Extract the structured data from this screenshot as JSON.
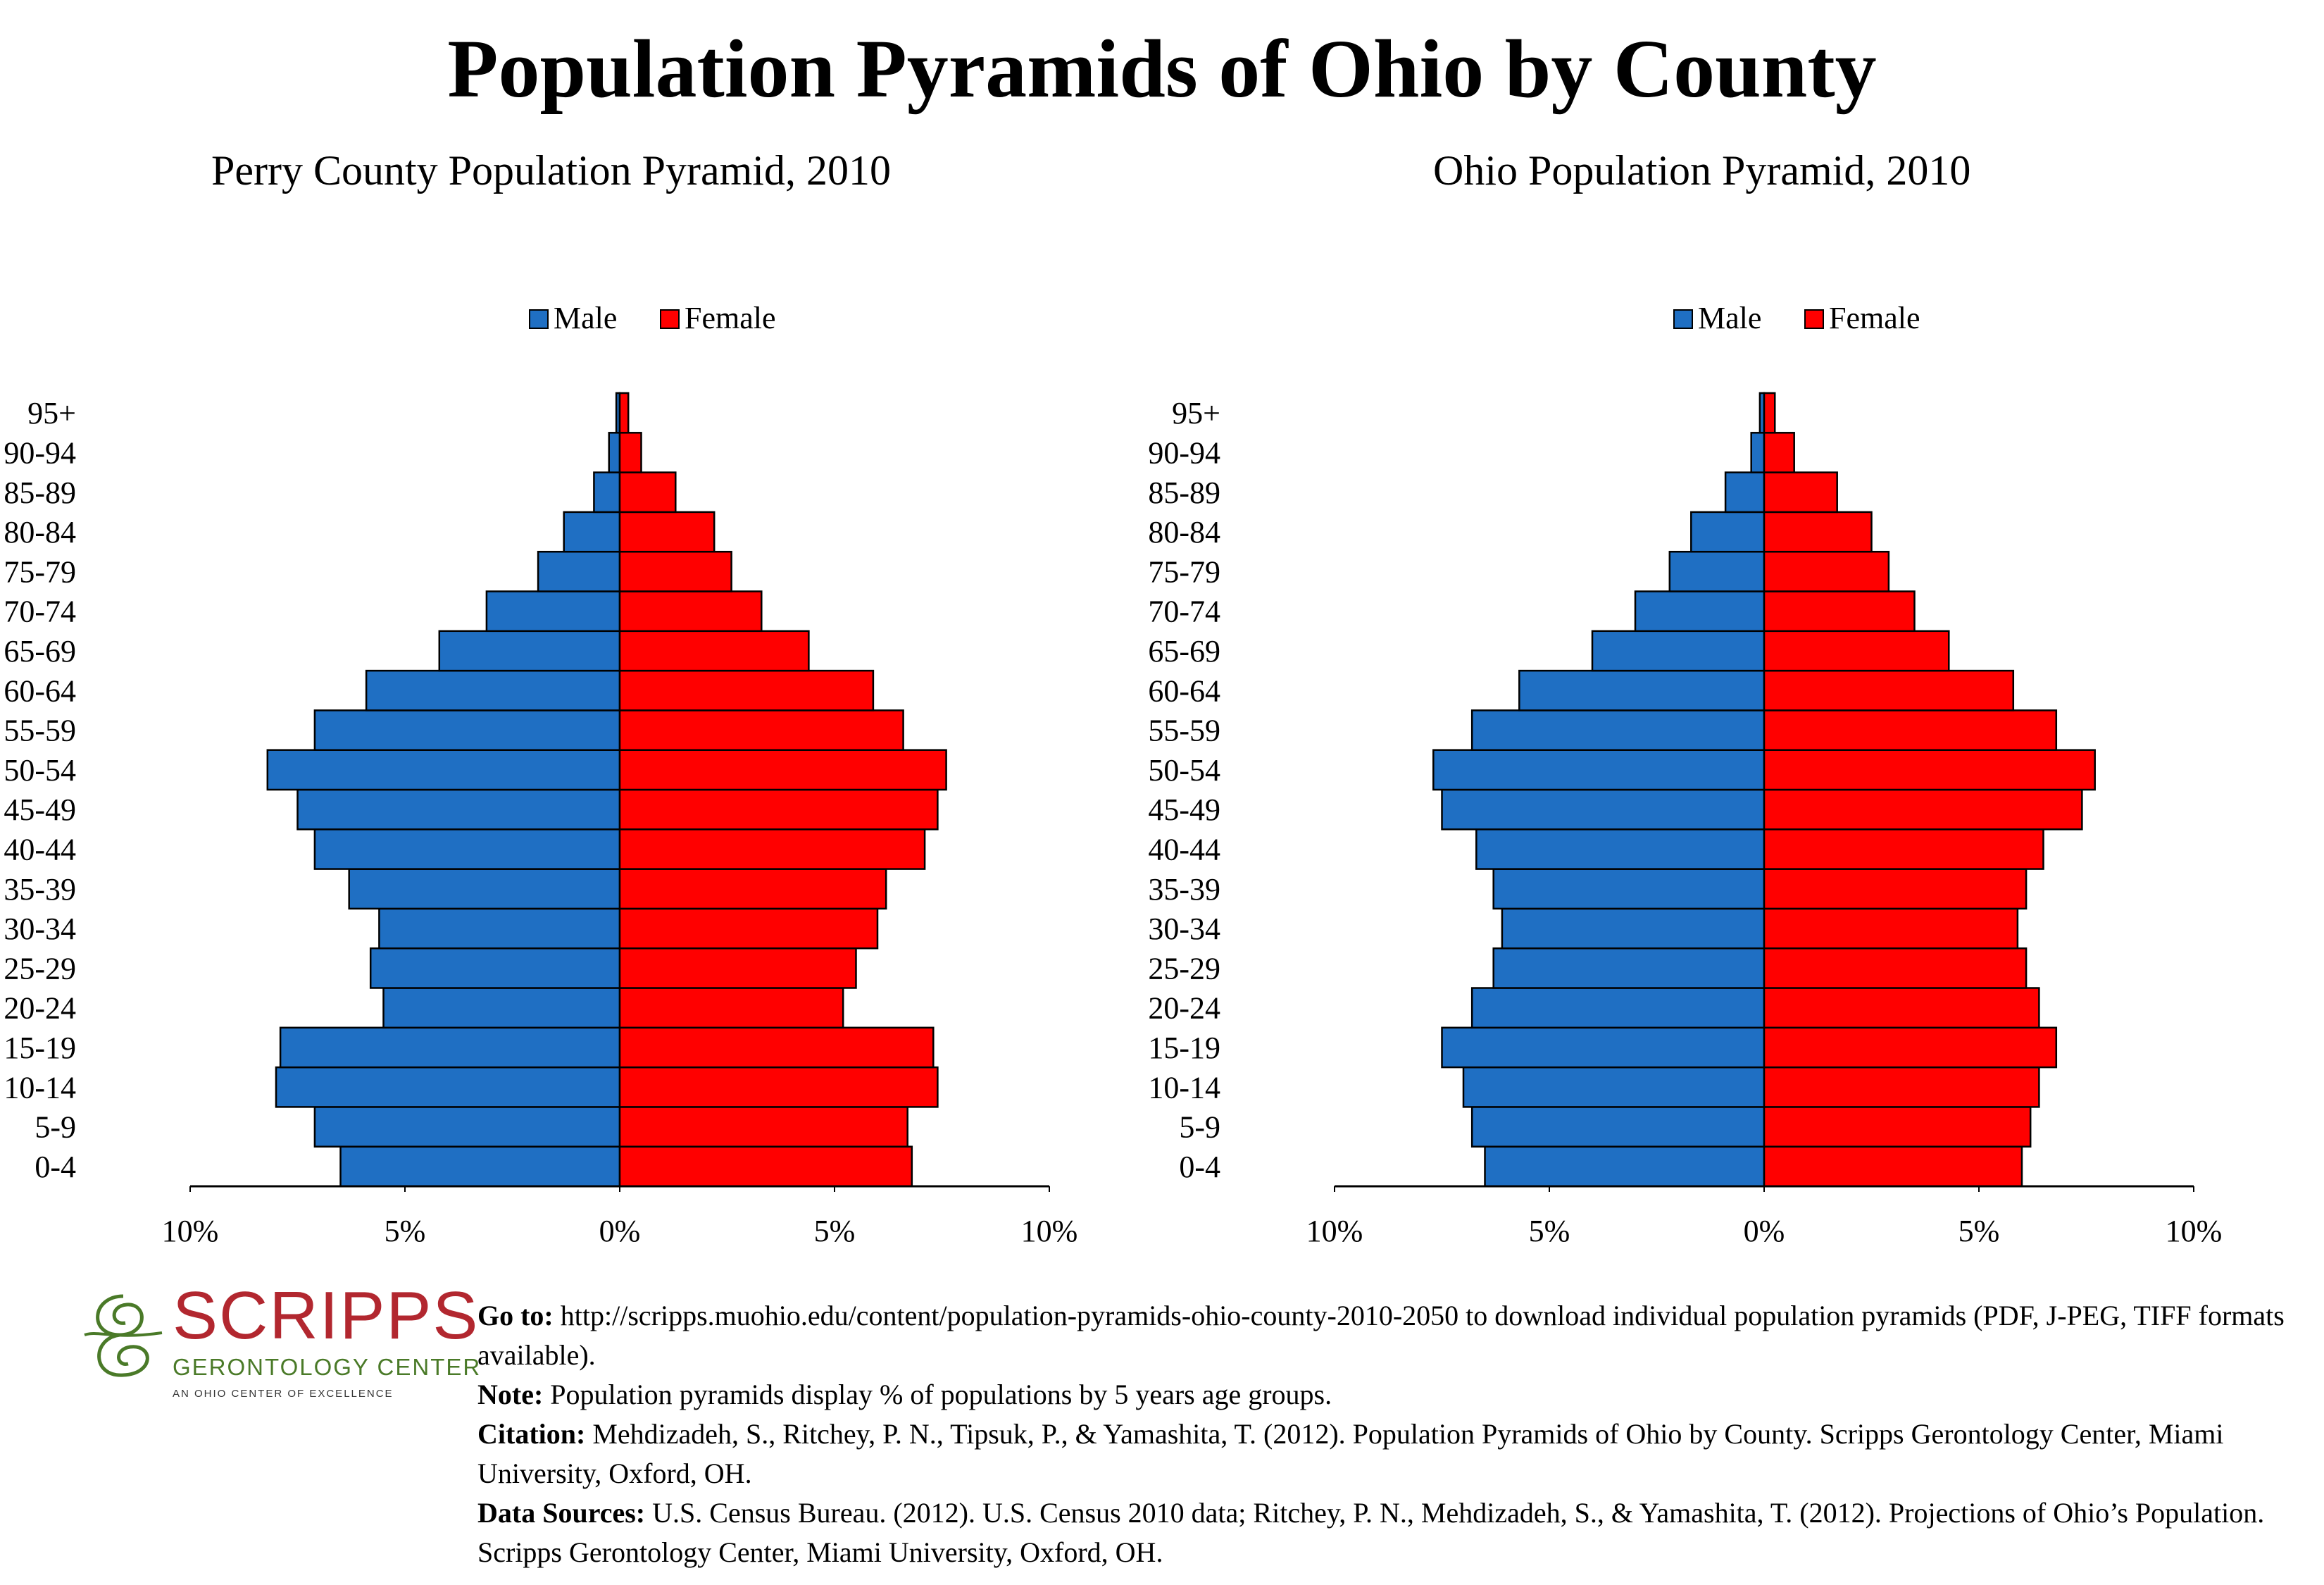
{
  "title": "Population Pyramids of Ohio by County",
  "legend": {
    "male": "Male",
    "female": "Female"
  },
  "colors": {
    "male": "#1f6fc3",
    "female": "#ff0000",
    "logo_red": "#b2272f",
    "logo_green": "#4a7a28"
  },
  "chart_data": [
    {
      "type": "bar",
      "orientation": "horizontal-population-pyramid",
      "title": "Perry County Population Pyramid, 2010",
      "categories": [
        "0-4",
        "5-9",
        "10-14",
        "15-19",
        "20-24",
        "25-29",
        "30-34",
        "35-39",
        "40-44",
        "45-49",
        "50-54",
        "55-59",
        "60-64",
        "65-69",
        "70-74",
        "75-79",
        "80-84",
        "85-89",
        "90-94",
        "95+"
      ],
      "series": [
        {
          "name": "Male",
          "values": [
            6.5,
            7.1,
            8.0,
            7.9,
            5.5,
            5.8,
            5.6,
            6.3,
            7.1,
            7.5,
            8.2,
            7.1,
            5.9,
            4.2,
            3.1,
            1.9,
            1.3,
            0.6,
            0.25,
            0.08
          ]
        },
        {
          "name": "Female",
          "values": [
            6.8,
            6.7,
            7.4,
            7.3,
            5.2,
            5.5,
            6.0,
            6.2,
            7.1,
            7.4,
            7.6,
            6.6,
            5.9,
            4.4,
            3.3,
            2.6,
            2.2,
            1.3,
            0.5,
            0.2
          ]
        }
      ],
      "xlim": [
        -10,
        10
      ],
      "xticks": [
        "10%",
        "5%",
        "0%",
        "5%",
        "10%"
      ],
      "legend_position": "top"
    },
    {
      "type": "bar",
      "orientation": "horizontal-population-pyramid",
      "title": "Ohio Population Pyramid, 2010",
      "categories": [
        "0-4",
        "5-9",
        "10-14",
        "15-19",
        "20-24",
        "25-29",
        "30-34",
        "35-39",
        "40-44",
        "45-49",
        "50-54",
        "55-59",
        "60-64",
        "65-69",
        "70-74",
        "75-79",
        "80-84",
        "85-89",
        "90-94",
        "95+"
      ],
      "series": [
        {
          "name": "Male",
          "values": [
            6.5,
            6.8,
            7.0,
            7.5,
            6.8,
            6.3,
            6.1,
            6.3,
            6.7,
            7.5,
            7.7,
            6.8,
            5.7,
            4.0,
            3.0,
            2.2,
            1.7,
            0.9,
            0.3,
            0.1
          ]
        },
        {
          "name": "Female",
          "values": [
            6.0,
            6.2,
            6.4,
            6.8,
            6.4,
            6.1,
            5.9,
            6.1,
            6.5,
            7.4,
            7.7,
            6.8,
            5.8,
            4.3,
            3.5,
            2.9,
            2.5,
            1.7,
            0.7,
            0.25
          ]
        }
      ],
      "xlim": [
        -10,
        10
      ],
      "xticks": [
        "10%",
        "5%",
        "0%",
        "5%",
        "10%"
      ],
      "legend_position": "top"
    }
  ],
  "logo": {
    "name": "SCRIPPS",
    "subtitle": "GERONTOLOGY CENTER",
    "tagline": "AN OHIO CENTER OF EXCELLENCE"
  },
  "notes": {
    "goto_label": "Go to:",
    "goto_text": "http://scripps.muohio.edu/content/population-pyramids-ohio-county-2010-2050 to download individual population pyramids (PDF, J-PEG, TIFF formats available).",
    "note_label": "Note:",
    "note_text": "Population pyramids display % of populations by 5 years age groups.",
    "citation_label": "Citation:",
    "citation_text": "Mehdizadeh, S., Ritchey, P. N., Tipsuk, P., & Yamashita, T. (2012). Population Pyramids of Ohio by County. Scripps Gerontology Center, Miami University, Oxford, OH.",
    "sources_label": "Data Sources:",
    "sources_text": "U.S. Census Bureau. (2012). U.S. Census 2010 data; Ritchey, P. N., Mehdizadeh, S., & Yamashita, T. (2012). Projections of Ohio’s Population. Scripps Gerontology Center, Miami University, Oxford, OH."
  }
}
